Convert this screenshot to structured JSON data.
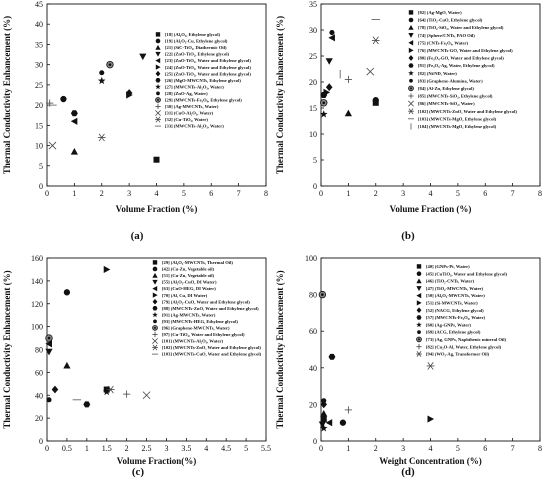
{
  "chart_data": [
    {
      "panel": "(a)",
      "type": "scatter",
      "xlabel": "Volume Fraction (%)",
      "ylabel": "Thermal Conductivity Enhancement (%)",
      "xlim": [
        0,
        8
      ],
      "ylim": [
        0,
        45
      ],
      "xticks": [
        0,
        1,
        2,
        3,
        4,
        5,
        6,
        7,
        8
      ],
      "yticks": [
        0,
        5,
        10,
        15,
        20,
        25,
        30,
        35,
        40,
        45
      ],
      "legend_position": "right",
      "series": [
        {
          "name": "[18] (Al₂O₃, Ethylene glycol)",
          "marker": "square",
          "points": [
            [
              4.0,
              6.5
            ]
          ]
        },
        {
          "name": "[19] (Al₂O₃-Cu, Ethylene glycol)",
          "marker": "circle",
          "points": [
            [
              0.6,
              21.5
            ]
          ]
        },
        {
          "name": "[21] (SiC-TiO₂, Diathermic Oil)",
          "marker": "triangle-up",
          "points": [
            [
              1.0,
              8.5
            ]
          ]
        },
        {
          "name": "[22] (ZnO-TiO₂, Ethylene glycol)",
          "marker": "triangle-down",
          "points": [
            [
              3.5,
              32
            ]
          ]
        },
        {
          "name": "[23] (ZnO-TiO₂, Water and Ethylene glycol)",
          "marker": "triangle-left",
          "points": [
            [
              1.0,
              16
            ]
          ]
        },
        {
          "name": "[24] (ZnO-TiO₂, Water and Ethylene glycol)",
          "marker": "triangle-right",
          "points": [
            [
              3.0,
              22.5
            ]
          ]
        },
        {
          "name": "[25] (ZnO-TiO₂, Water and Ethylene glycol)",
          "marker": "diamond",
          "points": [
            [
              3.0,
              23
            ]
          ]
        },
        {
          "name": "[26] (MgO-MWCNTs, Ethylene glycol)",
          "marker": "hexagon",
          "points": [
            [
              1.0,
              18
            ]
          ]
        },
        {
          "name": "[27] (MWCNTs-Al₂O₃, Water)",
          "marker": "star",
          "points": [
            [
              2.0,
              26
            ]
          ]
        },
        {
          "name": "[28] (ZnO-Ag, Water)",
          "marker": "circle-small",
          "points": [
            [
              2.0,
              28
            ]
          ]
        },
        {
          "name": "[29] (MWCNTs-Fe₃O₄, Ethylene glycol)",
          "marker": "circle-dot",
          "points": [
            [
              2.3,
              30
            ]
          ]
        },
        {
          "name": "[30] (Ag-MWCNTs, Water)",
          "marker": "plus",
          "points": [
            [
              0.1,
              20.5
            ]
          ]
        },
        {
          "name": "[31] (CuO-Al₂O₃, Water)",
          "marker": "x",
          "points": [
            [
              0.2,
              10
            ]
          ]
        },
        {
          "name": "[32] (Cu-TiO₂, Water)",
          "marker": "asterisk",
          "points": [
            [
              2.0,
              12
            ]
          ]
        },
        {
          "name": "[33] (MWCNTs-Al₂O₃, Water)",
          "marker": "dash",
          "points": [
            [
              0.2,
              20
            ]
          ]
        }
      ]
    },
    {
      "panel": "(b)",
      "type": "scatter",
      "xlabel": "Volume Fraction (%)",
      "ylabel": "Thermal Conductivity Enhancement (%)",
      "xlim": [
        0,
        8
      ],
      "ylim": [
        0,
        35
      ],
      "xticks": [
        0,
        1,
        2,
        3,
        4,
        5,
        6,
        7,
        8
      ],
      "yticks": [
        0,
        5,
        10,
        15,
        20,
        25,
        30,
        35
      ],
      "legend_position": "right",
      "series": [
        {
          "name": "[82] (Ag-MgO, Water)",
          "marker": "square",
          "points": [
            [
              2.0,
              16
            ]
          ]
        },
        {
          "name": "[64] (TiO₂-CuO, Ethylene glycol)",
          "marker": "circle",
          "points": [
            [
              2.0,
              16.5
            ]
          ]
        },
        {
          "name": "[78] (TiO₂-SiO₂, Water and Ethylene glycol)",
          "marker": "triangle-up",
          "points": [
            [
              1.0,
              14
            ]
          ]
        },
        {
          "name": "[74] (Sphere/CNTs, PAO Oil)",
          "marker": "triangle-down",
          "points": [
            [
              0.3,
              24
            ]
          ]
        },
        {
          "name": "[75] (CNTs-Fe₃O₄, Water)",
          "marker": "triangle-left",
          "points": [
            [
              0.4,
              28.5
            ]
          ]
        },
        {
          "name": "[76] (MWCNTs-GO, Water and Ethylene glycol)",
          "marker": "triangle-right",
          "points": [
            [
              0.2,
              18
            ]
          ]
        },
        {
          "name": "[80] (Fe₃O₄-GO, Water and Ethylene glycol)",
          "marker": "diamond",
          "points": [
            [
              0.3,
              19
            ]
          ]
        },
        {
          "name": "[81] (Fe₃O₄-Ag, Water, Ethylene glycol)",
          "marker": "hexagon",
          "points": [
            [
              0.1,
              17.5
            ]
          ]
        },
        {
          "name": "[82] (Ni/ND, Water)",
          "marker": "star",
          "points": [
            [
              0.1,
              13.8
            ]
          ]
        },
        {
          "name": "[83] (Graphene-Alumina, Water)",
          "marker": "circle-small",
          "points": [
            [
              0.4,
              29.5
            ]
          ]
        },
        {
          "name": "[84] (Al-Zn, Ethylene glycol)",
          "marker": "circle-dot",
          "points": [
            [
              0.1,
              16
            ]
          ]
        },
        {
          "name": "[85] (MWCNTs-SiO₂, Ethylene glycol)",
          "marker": "plus",
          "points": [
            [
              1.0,
              20.5
            ]
          ]
        },
        {
          "name": "[86] (MWCNTs-SiO₂, Water)",
          "marker": "x",
          "points": [
            [
              1.8,
              22
            ]
          ]
        },
        {
          "name": "[102] (MWCNTs-ZnO, Water and Ethylene glycol)",
          "marker": "asterisk",
          "points": [
            [
              2.0,
              28
            ]
          ]
        },
        {
          "name": "[103] (MWCNTs-MgO, Ethylene glycol)",
          "marker": "dash",
          "points": [
            [
              2.0,
              32
            ]
          ]
        },
        {
          "name": "[104] (MWCNTs-MgO, Ethylene glycol)",
          "marker": "vbar",
          "points": [
            [
              0.7,
              21.5
            ]
          ]
        }
      ]
    },
    {
      "panel": "(c)",
      "type": "scatter",
      "xlabel": "Volume Fraction(%)",
      "ylabel": "Thermal Conductivity Enhancement (%)",
      "xlim": [
        0,
        5.5
      ],
      "ylim": [
        0,
        160
      ],
      "xticks": [
        0,
        0.5,
        1,
        1.5,
        2,
        2.5,
        3,
        3.5,
        4,
        4.5,
        5,
        5.5
      ],
      "yticks": [
        0,
        20,
        40,
        60,
        80,
        100,
        120,
        140,
        160
      ],
      "legend_position": "right",
      "series": [
        {
          "name": "[29] (Al₂O₃-MWCNTs, Thermal Oil)",
          "marker": "square",
          "points": [
            [
              1.5,
              45
            ]
          ]
        },
        {
          "name": "[42] (Cu-Zn, Vegetable oil)",
          "marker": "circle",
          "points": [
            [
              0.5,
              130
            ]
          ]
        },
        {
          "name": "[51] (Cu-Zn, Vegetable oil)",
          "marker": "triangle-up",
          "points": [
            [
              0.5,
              66
            ]
          ]
        },
        {
          "name": "[55] (Al₂O₃-CuO, DI Water)",
          "marker": "triangle-down",
          "points": [
            [
              0.05,
              78
            ]
          ]
        },
        {
          "name": "[63] (CuO-HEG, DI Water)",
          "marker": "triangle-left",
          "points": [
            [
              0.05,
              85
            ]
          ]
        },
        {
          "name": "[70] (Al, Cu, DI Water)",
          "marker": "triangle-right",
          "points": [
            [
              1.5,
              150
            ]
          ]
        },
        {
          "name": "[79] (Al₂O₃-CuO, Water and Ethylene glycol)",
          "marker": "diamond",
          "points": [
            [
              0.2,
              45
            ]
          ]
        },
        {
          "name": "[88] (MWCNTs-ZnO, Water and Ethylene glycol)",
          "marker": "hexagon",
          "points": [
            [
              1.0,
              32
            ]
          ]
        },
        {
          "name": "[91] (Ag-MWCNTs, Water)",
          "marker": "star",
          "points": [
            [
              1.5,
              43
            ]
          ]
        },
        {
          "name": "[93] (MWCNTs-HEG, Ethylene glycol)",
          "marker": "circle-small",
          "points": [
            [
              0.05,
              36
            ]
          ]
        },
        {
          "name": "[96] (Graphene-MWCNTs, Water)",
          "marker": "circle-dot",
          "points": [
            [
              0.05,
              90
            ]
          ]
        },
        {
          "name": "[97] (Cu-TiO₂, Water and Ethylene glycol)",
          "marker": "plus",
          "points": [
            [
              2.0,
              41
            ]
          ]
        },
        {
          "name": "[101] (MWCNTs-Al₂O₃, Water)",
          "marker": "x",
          "points": [
            [
              2.5,
              40
            ]
          ]
        },
        {
          "name": "[102] (MWCNTs-ZnO, Water and Ethylene glycol)",
          "marker": "asterisk",
          "points": [
            [
              1.6,
              45
            ]
          ]
        },
        {
          "name": "[103] (MWCNTs-CuO, Water and Ethylene glycol)",
          "marker": "dash",
          "points": [
            [
              0.75,
              36
            ]
          ]
        }
      ]
    },
    {
      "panel": "(d)",
      "type": "scatter",
      "xlabel": "Weight Concentration (%)",
      "ylabel": "Thermal Conductivity Enhancement (%)",
      "xlim": [
        0,
        8
      ],
      "ylim": [
        0,
        100
      ],
      "xticks": [
        0,
        1,
        2,
        3,
        4,
        5,
        6,
        7,
        8
      ],
      "yticks": [
        0,
        20,
        40,
        60,
        80,
        100
      ],
      "legend_position": "right",
      "series": [
        {
          "name": "[40] (GNPs-Pt, Water)",
          "marker": "square",
          "points": [
            [
              0.1,
              12
            ]
          ]
        },
        {
          "name": "[45] (CuTiO₃, Water and Ethylene glycol)",
          "marker": "circle",
          "points": [
            [
              0.8,
              10
            ]
          ]
        },
        {
          "name": "[46] (TiO₂-CNTs, Water)",
          "marker": "triangle-up",
          "points": [
            [
              0.1,
              15
            ]
          ]
        },
        {
          "name": "[47] (TiO₂-MWCNTs, Water)",
          "marker": "triangle-down",
          "points": [
            [
              0.05,
              9
            ]
          ]
        },
        {
          "name": "[50] (Al₂O₃-MWCNTs, Water)",
          "marker": "triangle-left",
          "points": [
            [
              0.3,
              10
            ]
          ]
        },
        {
          "name": "[51] (Si-MWCNTs, Water)",
          "marker": "triangle-right",
          "points": [
            [
              4.0,
              12
            ]
          ]
        },
        {
          "name": "[52] (NACG, Ethylene glycol)",
          "marker": "diamond",
          "points": [
            [
              0.1,
              20
            ]
          ]
        },
        {
          "name": "[57] (MWCNTs-Fe₃O₄, Water)",
          "marker": "hexagon",
          "points": [
            [
              0.4,
              46
            ]
          ]
        },
        {
          "name": "[60] (Ag-GNPs, Water)",
          "marker": "star",
          "points": [
            [
              0.1,
              7
            ]
          ]
        },
        {
          "name": "[69] (ACG, Ethylene glycol)",
          "marker": "circle-small",
          "points": [
            [
              0.1,
              22
            ]
          ]
        },
        {
          "name": "[73] (Ag, GNPs, Naphthenic mineral Oil)",
          "marker": "circle-dot",
          "points": [
            [
              0.05,
              80
            ]
          ]
        },
        {
          "name": "[82] (Cu₂O-Al, Water, Ethylene glycol)",
          "marker": "plus",
          "points": [
            [
              1.0,
              17
            ]
          ]
        },
        {
          "name": "[94] (WO₃-Ag, Transformer Oil)",
          "marker": "asterisk",
          "points": [
            [
              4.0,
              41
            ]
          ]
        }
      ]
    }
  ]
}
